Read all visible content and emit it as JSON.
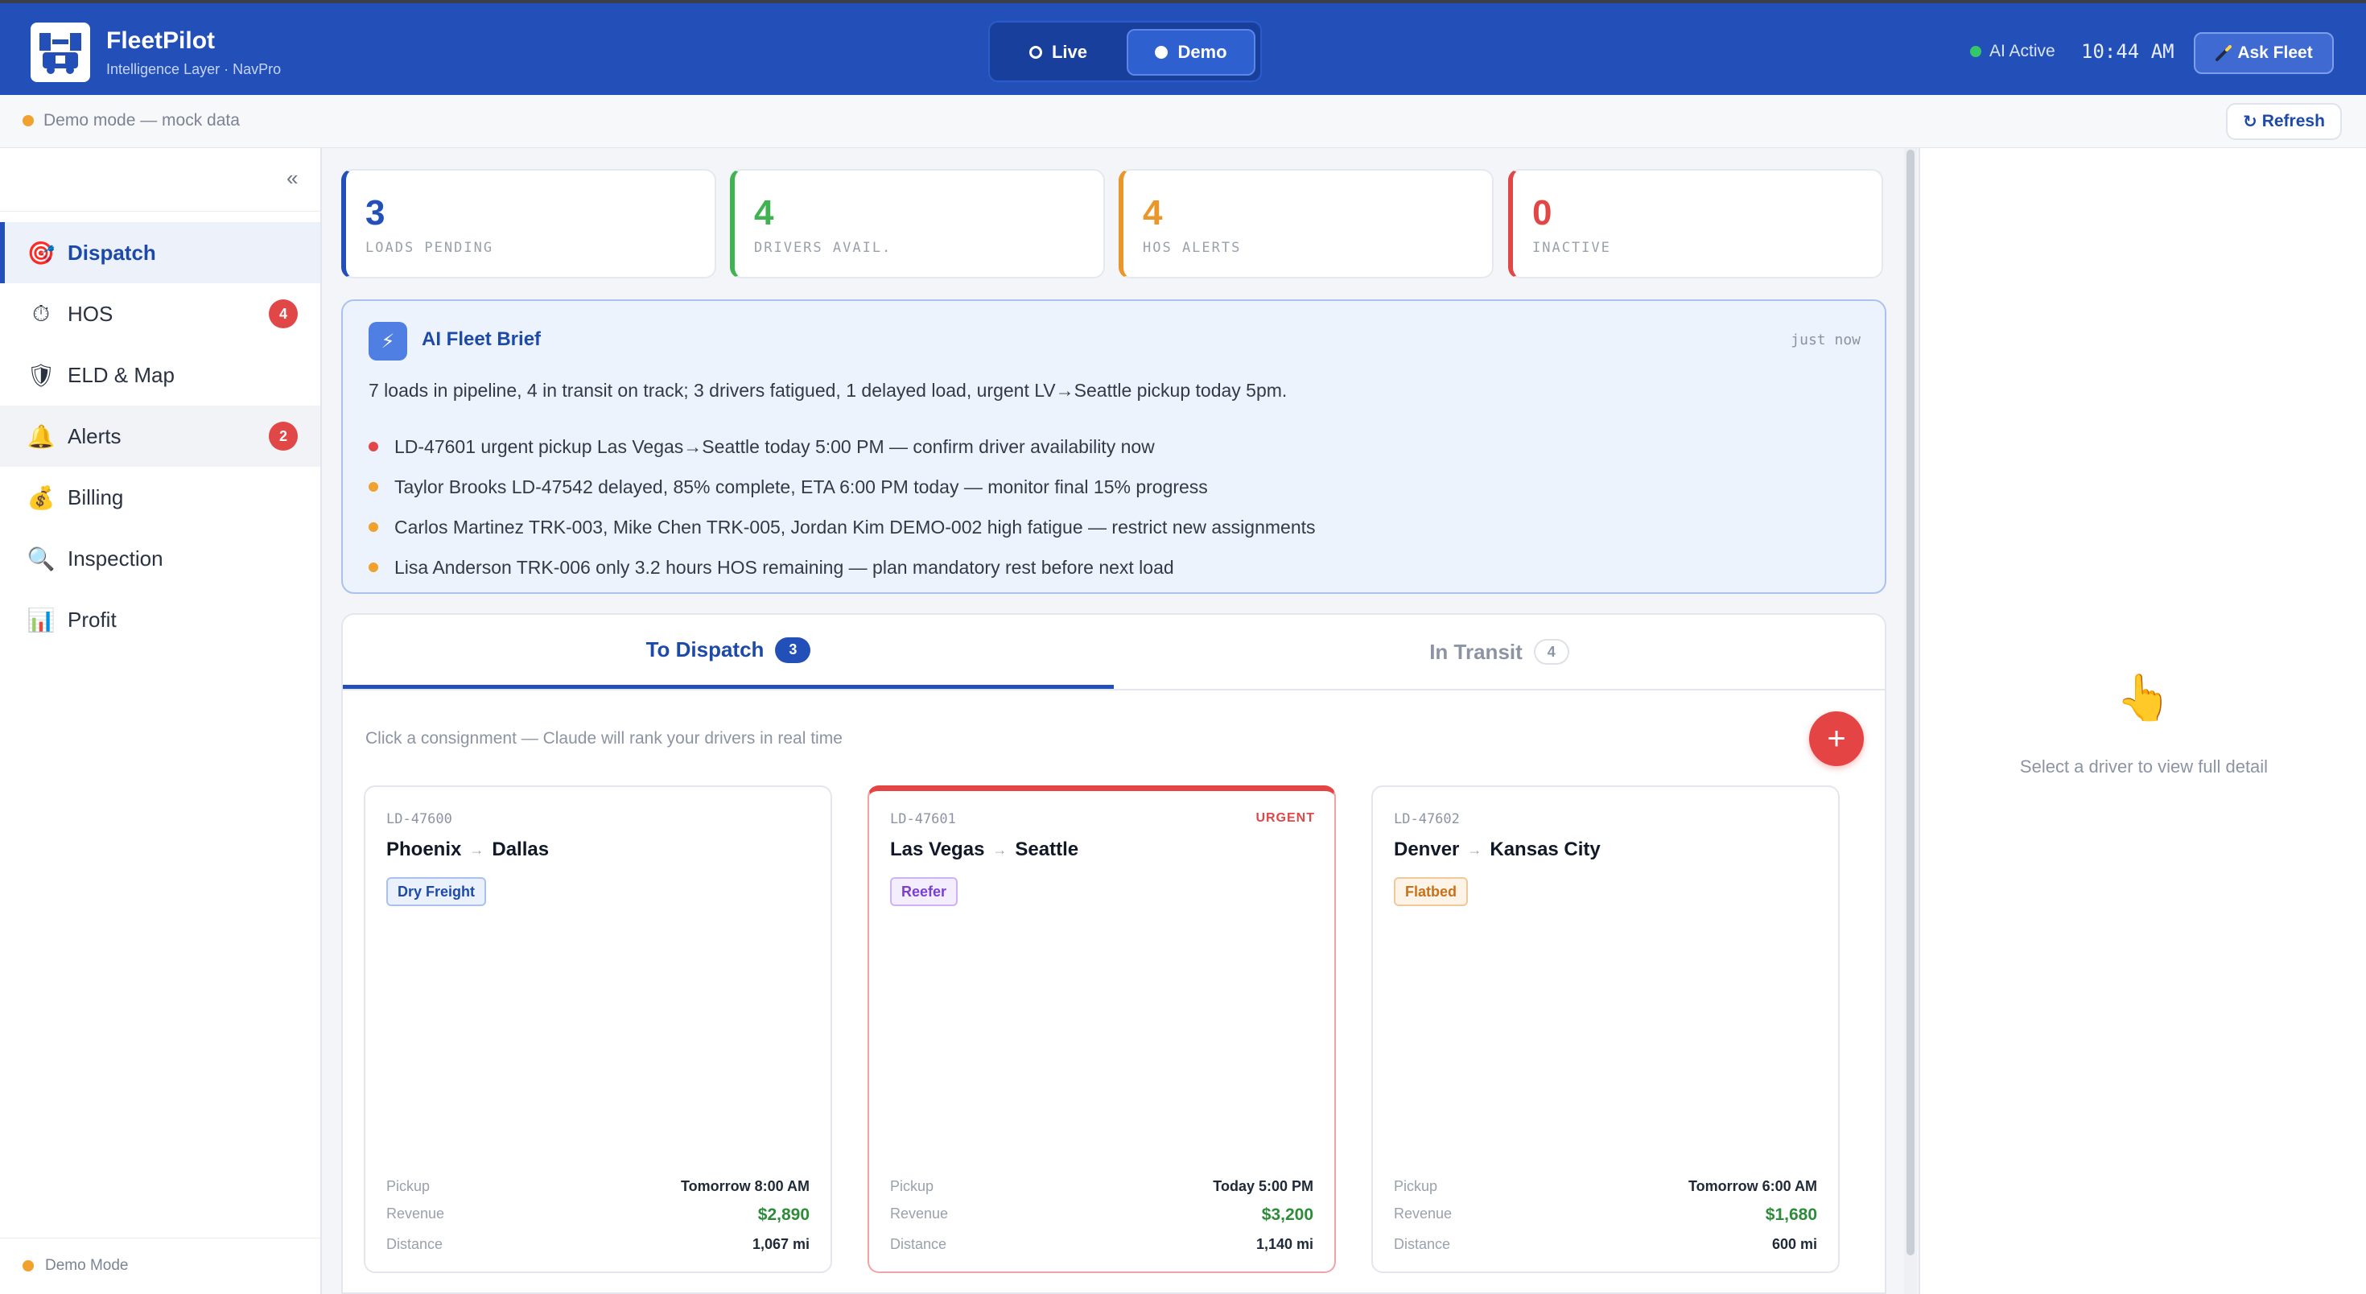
{
  "app": {
    "title": "FleetPilot",
    "subtitle": "Intelligence Layer · NavPro",
    "mode_live": "Live",
    "mode_demo": "Demo",
    "ai_status": "AI Active",
    "clock": "10:44 AM",
    "ask_label": "Ask Fleet"
  },
  "strip": {
    "text": "Demo mode — mock data",
    "refresh_label": "Refresh"
  },
  "sidebar": {
    "collapse_glyph": "«",
    "items": [
      {
        "label": "Dispatch",
        "icon": "🎯"
      },
      {
        "label": "HOS",
        "icon": "⏱",
        "badge": "4"
      },
      {
        "label": "ELD & Map",
        "icon": "🛡"
      },
      {
        "label": "Alerts",
        "icon": "🔔",
        "badge": "2"
      },
      {
        "label": "Billing",
        "icon": "💰"
      },
      {
        "label": "Inspection",
        "icon": "🔍"
      },
      {
        "label": "Profit",
        "icon": "📊"
      }
    ],
    "footer": "Demo Mode"
  },
  "stats": [
    {
      "value": "3",
      "label": "LOADS PENDING",
      "color": "#2350b8"
    },
    {
      "value": "4",
      "label": "DRIVERS AVAIL.",
      "color": "#3fb34f"
    },
    {
      "value": "4",
      "label": "HOS ALERTS",
      "color": "#e9962b"
    },
    {
      "value": "0",
      "label": "INACTIVE",
      "color": "#e24747"
    }
  ],
  "brief": {
    "title": "AI Fleet Brief",
    "time": "just now",
    "summary": "7 loads in pipeline, 4 in transit on track; 3 drivers fatigued, 1 delayed load, urgent LV→Seattle pickup today 5pm.",
    "items": [
      {
        "text": "LD-47601 urgent pickup Las Vegas→Seattle today 5:00 PM — confirm driver availability now",
        "color": "#e24747"
      },
      {
        "text": "Taylor Brooks LD-47542 delayed, 85% complete, ETA 6:00 PM today — monitor final 15% progress",
        "color": "#f0a12e"
      },
      {
        "text": "Carlos Martinez TRK-003, Mike Chen TRK-005, Jordan Kim DEMO-002 high fatigue — restrict new assignments",
        "color": "#f0a12e"
      },
      {
        "text": "Lisa Anderson TRK-006 only 3.2 hours HOS remaining — plan mandatory rest before next load",
        "color": "#f0a12e"
      }
    ]
  },
  "dispatch": {
    "tabs": [
      {
        "label": "To Dispatch",
        "count": "3"
      },
      {
        "label": "In Transit",
        "count": "4"
      }
    ],
    "hint": "Click a consignment — Claude will rank your drivers in real time",
    "add_glyph": "+",
    "labels": {
      "pickup": "Pickup",
      "revenue": "Revenue",
      "distance": "Distance"
    },
    "loads": [
      {
        "id": "LD-47600",
        "from": "Phoenix",
        "to": "Dallas",
        "tag": "Dry Freight",
        "pickup": "Tomorrow 8:00 AM",
        "revenue": "$2,890",
        "distance": "1,067 mi",
        "urgent": ""
      },
      {
        "id": "LD-47601",
        "from": "Las Vegas",
        "to": "Seattle",
        "tag": "Reefer",
        "pickup": "Today 5:00 PM",
        "revenue": "$3,200",
        "distance": "1,140 mi",
        "urgent": "URGENT"
      },
      {
        "id": "LD-47602",
        "from": "Denver",
        "to": "Kansas City",
        "tag": "Flatbed",
        "pickup": "Tomorrow 6:00 AM",
        "revenue": "$1,680",
        "distance": "600 mi",
        "urgent": ""
      }
    ]
  },
  "detail": {
    "hand": "👆",
    "placeholder": "Select a driver to view full detail"
  }
}
